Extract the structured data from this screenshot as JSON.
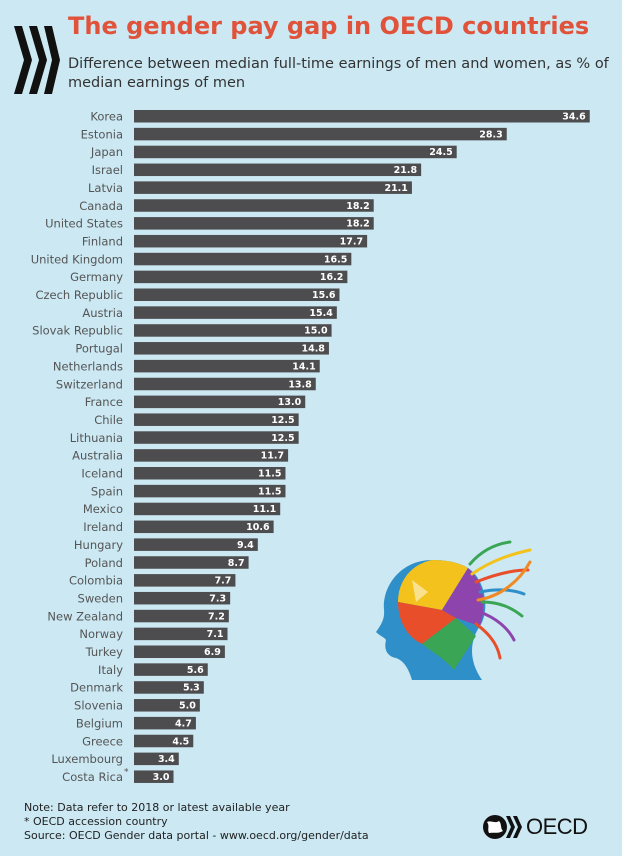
{
  "header": {
    "title": "The gender pay gap in OECD countries",
    "subtitle": "Difference between median full-time earnings of men and women, as % of median earnings of men"
  },
  "chart_data": {
    "type": "bar",
    "orientation": "horizontal",
    "title": "The gender pay gap in OECD countries",
    "subtitle": "Difference between median full-time earnings of men and women, as % of median earnings of men",
    "categories": [
      "Korea",
      "Estonia",
      "Japan",
      "Israel",
      "Latvia",
      "Canada",
      "United States",
      "Finland",
      "United Kingdom",
      "Germany",
      "Czech Republic",
      "Austria",
      "Slovak Republic",
      "Portugal",
      "Netherlands",
      "Switzerland",
      "France",
      "Chile",
      "Lithuania",
      "Australia",
      "Iceland",
      "Spain",
      "Mexico",
      "Ireland",
      "Hungary",
      "Poland",
      "Colombia",
      "Sweden",
      "New Zealand",
      "Norway",
      "Turkey",
      "Italy",
      "Denmark",
      "Slovenia",
      "Belgium",
      "Greece",
      "Luxembourg",
      "Costa Rica"
    ],
    "values": [
      34.6,
      28.3,
      24.5,
      21.8,
      21.1,
      18.2,
      18.2,
      17.7,
      16.5,
      16.2,
      15.6,
      15.4,
      15.0,
      14.8,
      14.1,
      13.8,
      13.0,
      12.5,
      12.5,
      11.7,
      11.5,
      11.5,
      11.1,
      10.6,
      9.4,
      8.7,
      7.7,
      7.3,
      7.2,
      7.1,
      6.9,
      5.6,
      5.3,
      5.0,
      4.7,
      4.5,
      3.4,
      3.0
    ],
    "value_labels": [
      "34.6",
      "28.3",
      "24.5",
      "21.8",
      "21.1",
      "18.2",
      "18.2",
      "17.7",
      "16.5",
      "16.2",
      "15.6",
      "15.4",
      "15.0",
      "14.8",
      "14.1",
      "13.8",
      "13.0",
      "12.5",
      "12.5",
      "11.7",
      "11.5",
      "11.5",
      "11.1",
      "10.6",
      "9.4",
      "8.7",
      "7.7",
      "7.3",
      "7.2",
      "7.1",
      "6.9",
      "5.6",
      "5.3",
      "5.0",
      "4.7",
      "4.5",
      "3.4",
      "3.0"
    ],
    "marked": {
      "Costa Rica": "*"
    },
    "xlim": [
      0,
      35
    ],
    "grid": false,
    "bar_color": "#4d4d4f"
  },
  "notes": {
    "line1": "Note: Data refer to 2018 or latest available year",
    "line2": "* OECD accession country",
    "line3": "Source: OECD Gender data portal - www.oecd.org/gender/data"
  },
  "branding": {
    "logo_text": "OECD",
    "logo_icon": "oecd-chevrons-icon",
    "art_icon": "colorful-head-profile-icon",
    "accent": "#e0533a"
  }
}
